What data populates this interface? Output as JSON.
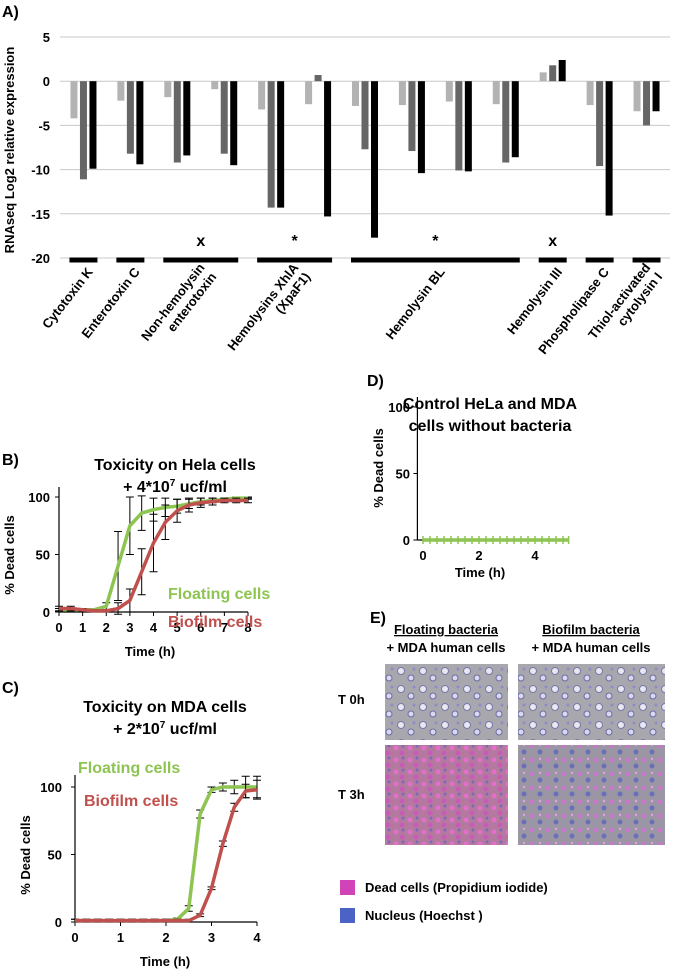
{
  "chart_data": [
    {
      "type": "bar",
      "panel_label": "A)",
      "ylabel": "RNAseq Log2 relative expression",
      "ylim": [
        -21,
        6
      ],
      "yticks": [
        5,
        0,
        -5,
        -10,
        -15,
        -20
      ],
      "grid": true,
      "categories": [
        null,
        null,
        null,
        null,
        null,
        null,
        null,
        null,
        null,
        null,
        null,
        null,
        null
      ],
      "series": [
        {
          "color": "#b3b3b3",
          "values": [
            -4.2,
            -2.2,
            -1.8,
            -0.9,
            -3.2,
            -2.6,
            -2.8,
            -2.7,
            -2.3,
            -2.6,
            1.0,
            -2.7,
            -3.4
          ]
        },
        {
          "color": "#666666",
          "values": [
            -11.1,
            -8.2,
            -9.2,
            -8.2,
            -14.3,
            0.7,
            -7.7,
            -7.9,
            -10.1,
            -9.2,
            1.8,
            -9.6,
            -5.0
          ]
        },
        {
          "color": "#000000",
          "values": [
            -9.9,
            -9.4,
            -8.4,
            -9.5,
            -14.3,
            -15.3,
            -17.7,
            -10.4,
            -10.2,
            -8.6,
            2.4,
            -15.2,
            -3.4
          ]
        }
      ],
      "groups": [
        {
          "label": [
            "Cytotoxin K"
          ],
          "categories": [
            0
          ]
        },
        {
          "label": [
            "Enterotoxin C"
          ],
          "categories": [
            1
          ]
        },
        {
          "label": [
            "Non-hemolysin",
            "enterotoxin"
          ],
          "categories": [
            2,
            3
          ],
          "mark": "x"
        },
        {
          "label": [
            "Hemolysins XhlA",
            "(XpaF1)"
          ],
          "categories": [
            4,
            5
          ],
          "mark": "*"
        },
        {
          "label": [
            "Hemolysin BL"
          ],
          "categories": [
            6,
            7,
            8,
            9
          ],
          "mark": "*"
        },
        {
          "label": [
            "Hemolysin III"
          ],
          "categories": [
            10
          ],
          "mark": "x"
        },
        {
          "label": [
            "Phospholipase C"
          ],
          "categories": [
            11
          ]
        },
        {
          "label": [
            "Thiol-activated",
            "cytolysin I"
          ],
          "categories": [
            12
          ]
        }
      ]
    },
    {
      "type": "line",
      "panel_label": "B)",
      "title": "Toxicity on Hela cells",
      "subtitle": {
        "text": "+ 4*10",
        "sup": "7",
        "after": " ucf/ml"
      },
      "xlabel": "Time (h)",
      "ylabel": "% Dead cells",
      "xlim": [
        0,
        8
      ],
      "ylim": [
        0,
        100
      ],
      "xticks": [
        0,
        1,
        2,
        3,
        4,
        5,
        6,
        7,
        8
      ],
      "yticks": [
        0,
        50,
        100
      ],
      "x": [
        0,
        0.5,
        1,
        1.5,
        2,
        2.5,
        3,
        3.5,
        4,
        4.5,
        5,
        5.5,
        6,
        6.5,
        7,
        7.5,
        8
      ],
      "series": [
        {
          "name": "Floating cells",
          "color": "#8dc452",
          "values": [
            2,
            2,
            2,
            2,
            5,
            40,
            75,
            86,
            89,
            91,
            92,
            94,
            96,
            97,
            98,
            99,
            99
          ],
          "errors": [
            1,
            1,
            1,
            1,
            3,
            30,
            25,
            15,
            10,
            8,
            6,
            4,
            3,
            2,
            1,
            1,
            1
          ]
        },
        {
          "name": "Biofilm cells",
          "color": "#c0504d",
          "values": [
            3,
            3,
            2,
            1,
            1,
            3,
            10,
            35,
            60,
            78,
            88,
            93,
            95,
            96,
            97,
            97,
            97
          ],
          "errors": [
            2,
            2,
            1,
            1,
            1,
            5,
            10,
            20,
            25,
            15,
            10,
            6,
            4,
            3,
            2,
            2,
            2
          ]
        }
      ]
    },
    {
      "type": "line",
      "panel_label": "C)",
      "title": "Toxicity on MDA cells",
      "subtitle": {
        "text": "+ 2*10",
        "sup": "7",
        "after": " ucf/ml"
      },
      "xlabel": "Time (h)",
      "ylabel": "% Dead cells",
      "xlim": [
        0,
        4
      ],
      "ylim": [
        0,
        100
      ],
      "xticks": [
        0,
        1,
        2,
        3,
        4
      ],
      "yticks": [
        0,
        50,
        100
      ],
      "x": [
        0,
        0.25,
        0.5,
        0.75,
        1,
        1.25,
        1.5,
        1.75,
        2,
        2.25,
        2.5,
        2.75,
        3,
        3.25,
        3.5,
        3.75,
        4
      ],
      "series": [
        {
          "name": "Floating cells",
          "color": "#8dc452",
          "values": [
            1,
            1,
            1,
            1,
            1,
            1,
            1,
            1,
            1,
            2,
            10,
            80,
            98,
            100,
            100,
            100,
            100
          ],
          "errors": [
            1,
            1,
            1,
            1,
            1,
            1,
            1,
            1,
            1,
            1,
            2,
            3,
            2,
            3,
            5,
            8,
            8
          ]
        },
        {
          "name": "Biofilm cells",
          "color": "#c0504d",
          "values": [
            1,
            1,
            1,
            1,
            1,
            1,
            1,
            1,
            1,
            1,
            1,
            5,
            25,
            58,
            85,
            97,
            98
          ],
          "errors": [
            1,
            1,
            1,
            1,
            1,
            1,
            1,
            1,
            1,
            1,
            1,
            1,
            1,
            2,
            3,
            5,
            7
          ]
        }
      ]
    },
    {
      "type": "line",
      "panel_label": "D)",
      "title": "Control HeLa and MDA",
      "subtitle": {
        "text": "cells without bacteria"
      },
      "xlabel": "Time (h)",
      "ylabel": "% Dead cells",
      "xlim": [
        -0.2,
        5.2
      ],
      "ylim": [
        0,
        100
      ],
      "xticks": [
        0,
        2,
        4
      ],
      "yticks": [
        0,
        50,
        100
      ],
      "x": [
        0,
        0.25,
        0.5,
        0.75,
        1,
        1.25,
        1.5,
        1.75,
        2,
        2.25,
        2.5,
        2.75,
        3,
        3.25,
        3.5,
        3.75,
        4,
        4.25,
        4.5,
        4.75,
        5,
        5.2
      ],
      "series": [
        {
          "color": "#8dc452",
          "values": [
            0,
            0,
            0,
            0,
            0,
            0,
            0,
            0,
            0,
            0,
            0,
            0,
            0,
            0,
            0,
            0,
            0,
            0,
            0,
            0,
            0,
            0
          ]
        }
      ]
    }
  ],
  "panel_e": {
    "panel_label": "E)",
    "col1": [
      "Floating bacteria",
      "+ MDA human cells"
    ],
    "col2": [
      "Biofilm bacteria",
      "+ MDA human cells"
    ],
    "rows": [
      "T 0h",
      "T 3h"
    ],
    "legend": [
      "Dead cells (Propidium iodide)",
      "Nucleus (Hoechst )"
    ]
  }
}
